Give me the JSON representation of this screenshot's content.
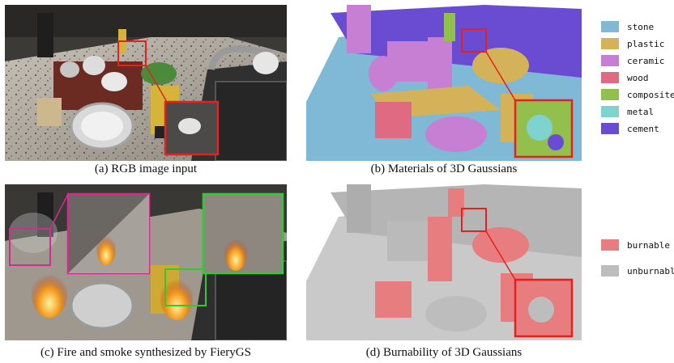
{
  "figure": {
    "panels": [
      {
        "id": "a",
        "caption": "(a) RGB image input"
      },
      {
        "id": "b",
        "caption": "(b) Materials of 3D Gaussians"
      },
      {
        "id": "c",
        "caption": "(c) Fire and smoke synthesized by FieryGS"
      },
      {
        "id": "d",
        "caption": "(d) Burnability of 3D Gaussians"
      }
    ],
    "materials_legend": [
      {
        "label": "stone",
        "color": "#7fb9d6"
      },
      {
        "label": "plastic",
        "color": "#d4b25a"
      },
      {
        "label": "ceramic",
        "color": "#c77fd3"
      },
      {
        "label": "wood",
        "color": "#e06a82"
      },
      {
        "label": "composite",
        "color": "#93bf4c"
      },
      {
        "label": "metal",
        "color": "#7fd3cf"
      },
      {
        "label": "cement",
        "color": "#6a4cd3"
      }
    ],
    "burnability_legend": [
      {
        "label": "burnable",
        "color": "#e87d80"
      },
      {
        "label": "unburnable",
        "color": "#bdbdbd"
      }
    ],
    "colors": {
      "highlight_red": "#e8201c",
      "highlight_pink": "#d22c8c",
      "highlight_green": "#2ecc2e"
    }
  }
}
